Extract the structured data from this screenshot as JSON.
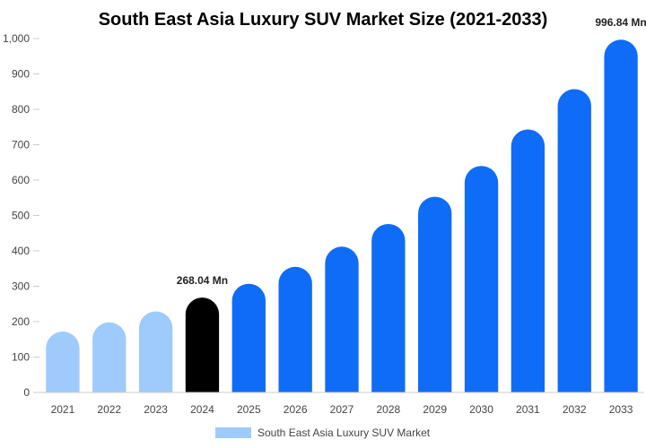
{
  "chart_data": {
    "type": "bar",
    "title": "South East Asia Luxury SUV Market Size (2021-2033)",
    "xlabel": "",
    "ylabel": "",
    "categories": [
      "2021",
      "2022",
      "2023",
      "2024",
      "2025",
      "2026",
      "2027",
      "2028",
      "2029",
      "2030",
      "2031",
      "2032",
      "2033"
    ],
    "series": [
      {
        "name": "South East Asia Luxury SUV Market",
        "values": [
          172,
          198,
          229,
          268.04,
          307,
          355,
          412,
          476,
          553,
          640,
          743,
          857,
          996.84
        ]
      }
    ],
    "ylim": [
      0,
      1000
    ],
    "yticks": [
      0,
      100,
      200,
      300,
      400,
      500,
      600,
      700,
      800,
      900,
      1000
    ],
    "ytick_labels": [
      "0",
      "100",
      "200",
      "300",
      "400",
      "500",
      "600",
      "700",
      "800",
      "900",
      "1,000"
    ],
    "data_labels": [
      {
        "category": "2024",
        "text": "268.04 Mn"
      },
      {
        "category": "2033",
        "text": "996.84 Mn"
      }
    ],
    "bar_colors": [
      "#9fcbfc",
      "#9fcbfc",
      "#9fcbfc",
      "#000000",
      "#0f6cf6",
      "#0f6cf6",
      "#0f6cf6",
      "#0f6cf6",
      "#0f6cf6",
      "#0f6cf6",
      "#0f6cf6",
      "#0f6cf6",
      "#0f6cf6"
    ],
    "legend_color": "#9fcbfc",
    "legend_position": "bottom-center",
    "grid": false
  }
}
